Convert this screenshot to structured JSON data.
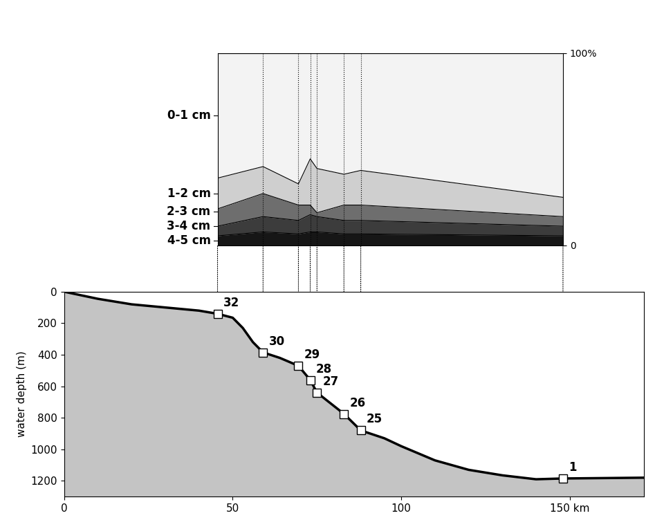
{
  "chart_data": [
    {
      "type": "line",
      "y_label": "water depth (m)",
      "x": [
        0,
        10,
        20,
        30,
        40,
        45.5,
        50,
        53,
        56,
        59,
        64,
        69.5,
        73,
        75,
        83,
        88,
        95,
        100,
        110,
        120,
        130,
        140,
        148,
        172
      ],
      "values": [
        0,
        45,
        80,
        100,
        120,
        140,
        165,
        230,
        320,
        385,
        420,
        470,
        560,
        640,
        775,
        880,
        930,
        980,
        1070,
        1130,
        1165,
        1190,
        1185,
        1180
      ],
      "color": "#000000",
      "stations": {
        "labels": [
          "32",
          "30",
          "29",
          "28",
          "27",
          "26",
          "25",
          "1"
        ],
        "x": [
          45.5,
          59,
          69.5,
          73,
          75,
          83,
          88,
          148
        ],
        "values": [
          140,
          385,
          470,
          560,
          640,
          775,
          880,
          1185
        ]
      },
      "marker": "square",
      "xlim": [
        0,
        172
      ],
      "xticks": [
        0,
        50,
        100,
        {
          "value": 150,
          "label": "150 km"
        }
      ],
      "ylim": [
        1300,
        0
      ],
      "yticks": [
        0,
        200,
        400,
        600,
        800,
        1000,
        1200
      ]
    },
    {
      "type": "area",
      "stacked": true,
      "x": [
        45.5,
        59,
        69.5,
        73,
        75,
        83,
        88,
        148
      ],
      "series": [
        {
          "name": "4-5 cm",
          "color": "#161616",
          "values": [
            5,
            7,
            6,
            7,
            7,
            6,
            6,
            5
          ]
        },
        {
          "name": "3-4 cm",
          "color": "#3c3c3c",
          "values": [
            5,
            8,
            7,
            9,
            8,
            7,
            7,
            5
          ]
        },
        {
          "name": "2-3 cm",
          "color": "#6e6e6e",
          "values": [
            9,
            12,
            8,
            5,
            2,
            8,
            8,
            5
          ]
        },
        {
          "name": "1-2 cm",
          "color": "#cfcfcf",
          "values": [
            16,
            14,
            11,
            24,
            23,
            16,
            18,
            10
          ]
        },
        {
          "name": "0-1 cm",
          "color": "#f3f3f3",
          "values": [
            65,
            59,
            68,
            55,
            60,
            63,
            61,
            75
          ]
        }
      ],
      "xlim": [
        45.5,
        148
      ],
      "ylim": [
        0,
        100
      ],
      "yticks": [
        0,
        {
          "value": 100,
          "label": "100%"
        }
      ],
      "tick_labels": "y"
    }
  ]
}
